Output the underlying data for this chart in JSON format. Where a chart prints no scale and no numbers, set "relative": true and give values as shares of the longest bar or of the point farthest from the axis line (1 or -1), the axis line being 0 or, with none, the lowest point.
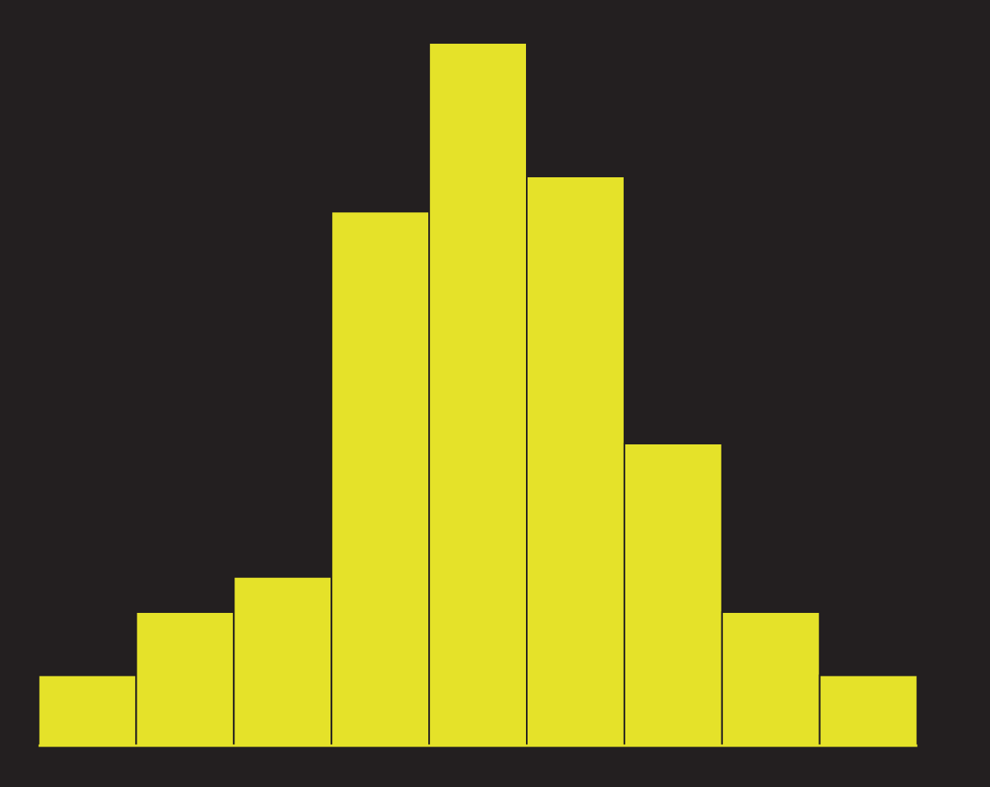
{
  "chart_data": {
    "type": "bar",
    "relative": true,
    "color": "#e5e229",
    "categories": [
      null,
      null,
      null,
      null,
      null,
      null,
      null,
      null,
      null
    ],
    "values": [
      0.1,
      0.19,
      0.24,
      0.76,
      1,
      0.81,
      0.43,
      0.19,
      0.1
    ]
  }
}
